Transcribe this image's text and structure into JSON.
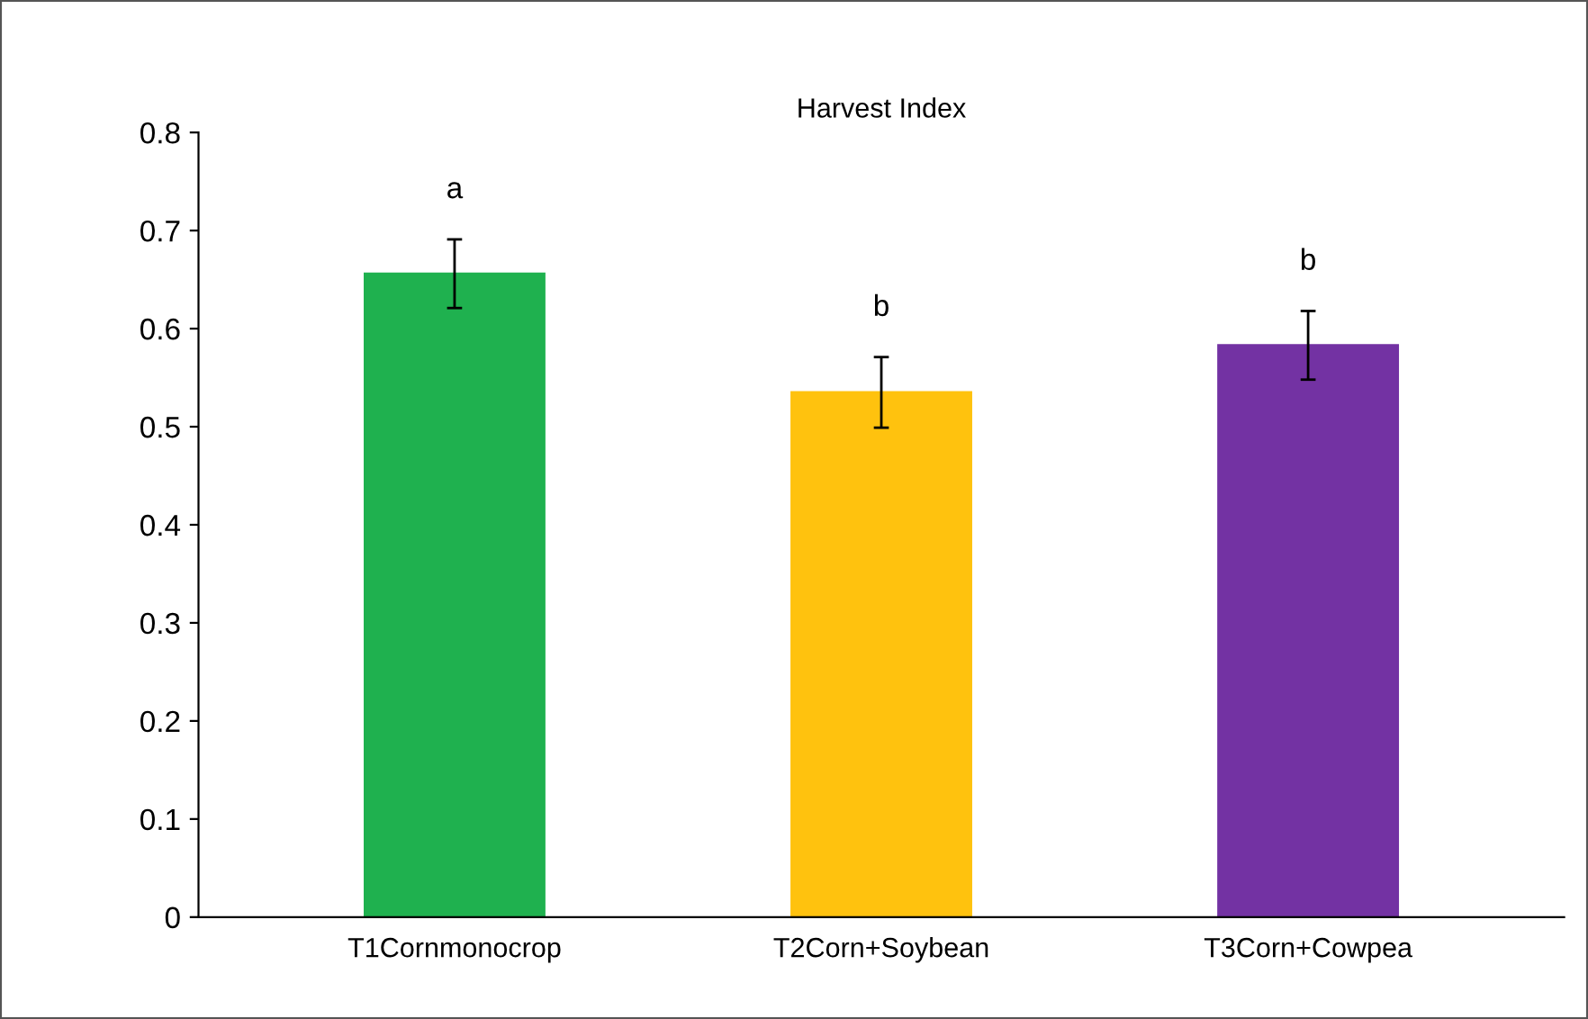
{
  "chart_data": {
    "type": "bar",
    "title": "Harvest Index",
    "categories": [
      "T1Cornmonocrop",
      "T2Corn+Soybean",
      "T3Corn+Cowpea"
    ],
    "values": [
      0.656,
      0.535,
      0.583
    ],
    "errors": [
      0.035,
      0.036,
      0.035
    ],
    "colors": [
      "#1fb14f",
      "#ffc20e",
      "#7332a3"
    ],
    "ylim": [
      0,
      0.8
    ],
    "yticks": [
      0,
      0.1,
      0.2,
      0.3,
      0.4,
      0.5,
      0.6,
      0.7,
      0.8
    ],
    "annotations": [
      "a",
      "b",
      "b"
    ],
    "grid": false,
    "legend": false
  }
}
